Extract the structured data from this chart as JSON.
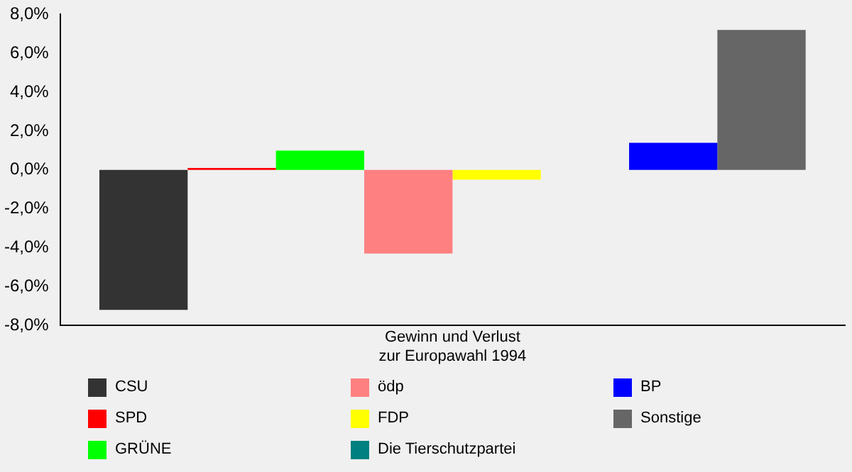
{
  "chart_data": {
    "type": "bar",
    "xlabel": "Gewinn und Verlust\nzur Europawahl 1994",
    "categories": [
      null
    ],
    "series": [
      {
        "name": "CSU",
        "color": "#333333",
        "values": [
          -7.2
        ]
      },
      {
        "name": "SPD",
        "color": "#ff0000",
        "values": [
          0.1
        ]
      },
      {
        "name": "GRÜNE",
        "color": "#00ff00",
        "values": [
          1.0
        ]
      },
      {
        "name": "ödp",
        "color": "#ff8080",
        "values": [
          -4.3
        ]
      },
      {
        "name": "FDP",
        "color": "#ffff00",
        "values": [
          -0.5
        ]
      },
      {
        "name": "Die Tierschutzpartei",
        "color": "#008080",
        "values": [
          0
        ]
      },
      {
        "name": "BP",
        "color": "#0000ff",
        "values": [
          1.4
        ]
      },
      {
        "name": "Sonstige",
        "color": "#666666",
        "values": [
          7.2
        ]
      }
    ],
    "ylim": [
      -8,
      8
    ],
    "yticks": [
      {
        "value": -8,
        "label": "-8,0%"
      },
      {
        "value": -6,
        "label": "-6,0%"
      },
      {
        "value": -4,
        "label": "-4,0%"
      },
      {
        "value": -2,
        "label": "-2,0%"
      },
      {
        "value": 0,
        "label": "0,0%"
      },
      {
        "value": 2,
        "label": "2,0%"
      },
      {
        "value": 4,
        "label": "4,0%"
      },
      {
        "value": 6,
        "label": "6,0%"
      },
      {
        "value": 8,
        "label": "8,0%"
      }
    ],
    "grid": false,
    "legend": "bottom"
  }
}
